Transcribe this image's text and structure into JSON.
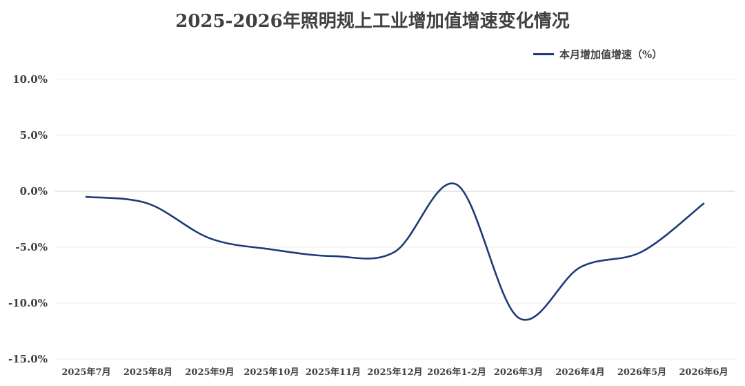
{
  "chart_data": {
    "type": "line",
    "title": "2025-2026年照明规上工业增加值增速变化情况",
    "categories": [
      "2025年7月",
      "2025年8月",
      "2025年9月",
      "2025年10月",
      "2025年11月",
      "2025年12月",
      "2026年1-2月",
      "2026年3月",
      "2026年4月",
      "2026年5月",
      "2026年6月"
    ],
    "series": [
      {
        "name": "本月增加值增速（%）",
        "values": [
          -0.5,
          -1.1,
          -4.2,
          -5.2,
          -5.8,
          -5.4,
          0.6,
          -11.3,
          -6.8,
          -5.4,
          -1.1
        ]
      }
    ],
    "ylim": [
      -15,
      10
    ],
    "yticks": [
      "10.0%",
      "5.0%",
      "0.0%",
      "-5.0%",
      "-10.0%",
      "-15.0%"
    ],
    "ytick_values": [
      10,
      5,
      0,
      -5,
      -10,
      -15
    ],
    "grid": true,
    "legend_position": "top-right",
    "line_color": "#1f3a78"
  }
}
